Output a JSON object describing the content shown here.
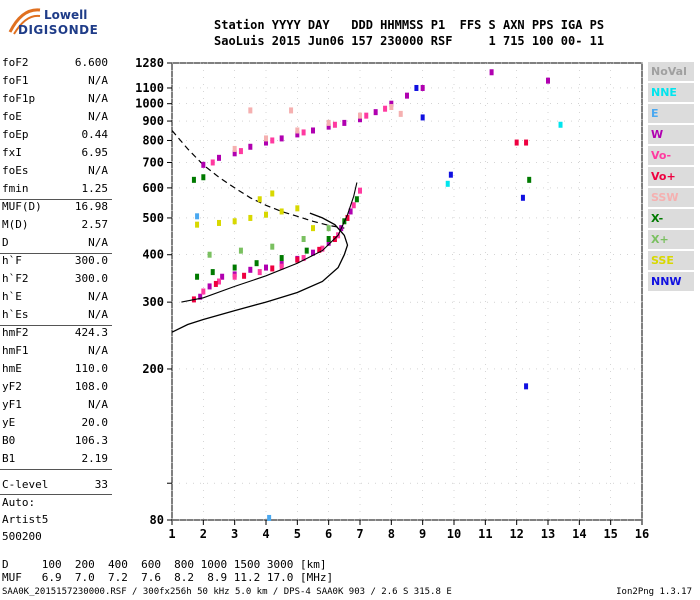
{
  "logo": {
    "line1": "Lowell",
    "line2": "DIGISONDE"
  },
  "header": {
    "line1": "Station YYYY DAY   DDD HHMMSS P1  FFS S AXN PPS IGA PS",
    "line2": "SaoLuis 2015 Jun06 157 230000 RSF     1 715 100 00- 11"
  },
  "params_group1": [
    {
      "k": "foF2",
      "v": "6.600"
    },
    {
      "k": "foF1",
      "v": "N/A"
    },
    {
      "k": "foF1p",
      "v": "N/A"
    },
    {
      "k": "foE",
      "v": "N/A"
    },
    {
      "k": "foEp",
      "v": "0.44"
    },
    {
      "k": "fxI",
      "v": "6.95"
    },
    {
      "k": "foEs",
      "v": "N/A"
    },
    {
      "k": "fmin",
      "v": "1.25"
    }
  ],
  "params_group2": [
    {
      "k": "MUF(D)",
      "v": "16.98"
    },
    {
      "k": "M(D)",
      "v": "2.57"
    },
    {
      "k": "D",
      "v": "N/A"
    }
  ],
  "params_group3": [
    {
      "k": "h`F",
      "v": "300.0"
    },
    {
      "k": "h`F2",
      "v": "300.0"
    },
    {
      "k": "h`E",
      "v": "N/A"
    },
    {
      "k": "h`Es",
      "v": "N/A"
    }
  ],
  "params_group4": [
    {
      "k": "hmF2",
      "v": "424.3"
    },
    {
      "k": "hmF1",
      "v": "N/A"
    },
    {
      "k": "hmE",
      "v": "110.0"
    },
    {
      "k": "yF2",
      "v": "108.0"
    },
    {
      "k": "yF1",
      "v": "N/A"
    },
    {
      "k": "yE",
      "v": "20.0"
    },
    {
      "k": "B0",
      "v": "106.3"
    },
    {
      "k": "B1",
      "v": "2.19"
    }
  ],
  "clevel": {
    "k": "C-level",
    "v": "33"
  },
  "auto": {
    "line1": "Auto:",
    "line2": "Artist5",
    "line3": "500200"
  },
  "legend": [
    {
      "label": "NoVal",
      "color": "#a0a0a0"
    },
    {
      "label": "NNE",
      "color": "#00e5ee"
    },
    {
      "label": "E",
      "color": "#4aa8f0"
    },
    {
      "label": "W",
      "color": "#b000b0"
    },
    {
      "label": "Vo-",
      "color": "#ff3aa0"
    },
    {
      "label": "Vo+",
      "color": "#ee0040"
    },
    {
      "label": "SSW",
      "color": "#f5b0b0"
    },
    {
      "label": "X-",
      "color": "#007a00"
    },
    {
      "label": "X+",
      "color": "#7ac060"
    },
    {
      "label": "SSE",
      "color": "#d8d800"
    },
    {
      "label": "NNW",
      "color": "#1010e0"
    }
  ],
  "bottom": {
    "line1": "D     100  200  400  600  800 1000 1500 3000 [km]",
    "line2": "MUF   6.9  7.0  7.2  7.6  8.2  8.9 11.2 17.0 [MHz]"
  },
  "footer": {
    "left": "SAA0K_2015157230000.RSF / 300fx256h 50 kHz 5.0 km / DPS-4 SAA0K 903 / 2.6 S 315.8 E",
    "right": "Ion2Png 1.3.17"
  },
  "chart_data": {
    "type": "scatter",
    "title": "",
    "xlabel": "",
    "ylabel": "",
    "xlim": [
      1,
      16
    ],
    "ylim": [
      80,
      1280
    ],
    "y_scale": "log",
    "x_ticks": [
      1,
      2,
      3,
      4,
      5,
      6,
      7,
      8,
      9,
      10,
      11,
      12,
      13,
      14,
      15,
      16
    ],
    "y_ticks": [
      80,
      100,
      200,
      300,
      400,
      500,
      600,
      700,
      800,
      900,
      1000,
      1100,
      1280
    ],
    "y_tick_labels": [
      "80",
      "",
      "200",
      "300",
      "400",
      "500",
      "600",
      "700",
      "800",
      "900",
      "1000",
      "1100",
      "1280"
    ],
    "series": [
      {
        "name": "W",
        "color": "#b000b0",
        "points": [
          [
            1.9,
            310
          ],
          [
            2.2,
            330
          ],
          [
            2.6,
            350
          ],
          [
            3.0,
            355
          ],
          [
            3.5,
            365
          ],
          [
            4.0,
            370
          ],
          [
            4.5,
            378
          ],
          [
            5.0,
            390
          ],
          [
            5.5,
            405
          ],
          [
            6.0,
            430
          ],
          [
            6.4,
            470
          ],
          [
            6.7,
            520
          ],
          [
            2.0,
            690
          ],
          [
            2.5,
            720
          ],
          [
            3.0,
            740
          ],
          [
            3.5,
            770
          ],
          [
            4.0,
            790
          ],
          [
            4.5,
            810
          ],
          [
            5.0,
            830
          ],
          [
            5.5,
            850
          ],
          [
            6.0,
            870
          ],
          [
            6.5,
            890
          ],
          [
            7.0,
            910
          ],
          [
            7.5,
            950
          ],
          [
            8.0,
            1000
          ],
          [
            8.5,
            1050
          ],
          [
            9.0,
            1100
          ],
          [
            13.0,
            1150
          ],
          [
            11.2,
            1210
          ]
        ]
      },
      {
        "name": "Vo-",
        "color": "#ff3aa0",
        "points": [
          [
            2.0,
            320
          ],
          [
            2.5,
            340
          ],
          [
            3.0,
            350
          ],
          [
            3.8,
            360
          ],
          [
            4.5,
            372
          ],
          [
            5.2,
            392
          ],
          [
            5.8,
            415
          ],
          [
            6.3,
            450
          ],
          [
            6.8,
            540
          ],
          [
            7.0,
            590
          ],
          [
            2.3,
            700
          ],
          [
            3.2,
            750
          ],
          [
            4.2,
            800
          ],
          [
            5.2,
            840
          ],
          [
            6.2,
            880
          ],
          [
            7.2,
            930
          ],
          [
            7.8,
            970
          ]
        ]
      },
      {
        "name": "Vo+",
        "color": "#ee0040",
        "points": [
          [
            1.7,
            305
          ],
          [
            2.4,
            335
          ],
          [
            3.3,
            352
          ],
          [
            4.2,
            368
          ],
          [
            5.0,
            388
          ],
          [
            5.7,
            412
          ],
          [
            6.2,
            440
          ],
          [
            6.6,
            500
          ],
          [
            12.0,
            790
          ],
          [
            12.3,
            790
          ]
        ]
      },
      {
        "name": "SSW",
        "color": "#f5b0b0",
        "points": [
          [
            3.0,
            760
          ],
          [
            4.0,
            810
          ],
          [
            5.0,
            850
          ],
          [
            6.0,
            890
          ],
          [
            7.0,
            930
          ],
          [
            8.0,
            980
          ],
          [
            8.3,
            940
          ],
          [
            3.5,
            960
          ],
          [
            4.8,
            960
          ]
        ]
      },
      {
        "name": "X-",
        "color": "#007a00",
        "points": [
          [
            1.8,
            350
          ],
          [
            2.3,
            360
          ],
          [
            3.0,
            370
          ],
          [
            3.7,
            380
          ],
          [
            4.5,
            392
          ],
          [
            5.3,
            410
          ],
          [
            6.0,
            440
          ],
          [
            6.5,
            490
          ],
          [
            6.9,
            560
          ],
          [
            1.7,
            630
          ],
          [
            2.0,
            640
          ],
          [
            12.4,
            630
          ]
        ]
      },
      {
        "name": "X+",
        "color": "#7ac060",
        "points": [
          [
            2.2,
            400
          ],
          [
            3.2,
            410
          ],
          [
            4.2,
            420
          ],
          [
            5.2,
            440
          ],
          [
            6.0,
            470
          ]
        ]
      },
      {
        "name": "SSE",
        "color": "#d8d800",
        "points": [
          [
            1.8,
            480
          ],
          [
            2.5,
            485
          ],
          [
            3.0,
            490
          ],
          [
            3.5,
            500
          ],
          [
            4.0,
            510
          ],
          [
            4.5,
            520
          ],
          [
            5.0,
            530
          ],
          [
            3.8,
            560
          ],
          [
            4.2,
            580
          ],
          [
            5.5,
            470
          ]
        ]
      },
      {
        "name": "NNW",
        "color": "#1010e0",
        "points": [
          [
            9.9,
            650
          ],
          [
            12.2,
            565
          ],
          [
            12.3,
            180
          ],
          [
            9.0,
            920
          ],
          [
            8.8,
            1100
          ]
        ]
      },
      {
        "name": "NNE",
        "color": "#00e5ee",
        "points": [
          [
            13.4,
            880
          ],
          [
            9.8,
            615
          ]
        ]
      },
      {
        "name": "E",
        "color": "#4aa8f0",
        "points": [
          [
            4.1,
            81
          ],
          [
            1.8,
            505
          ]
        ]
      }
    ],
    "profile_curve": [
      [
        1.0,
        250
      ],
      [
        1.5,
        262
      ],
      [
        2.0,
        270
      ],
      [
        3.0,
        285
      ],
      [
        4.0,
        300
      ],
      [
        5.0,
        318
      ],
      [
        5.8,
        340
      ],
      [
        6.3,
        370
      ],
      [
        6.5,
        400
      ],
      [
        6.6,
        424
      ],
      [
        6.5,
        450
      ],
      [
        6.2,
        480
      ],
      [
        5.8,
        500
      ],
      [
        5.4,
        515
      ]
    ],
    "dashed_curve": [
      [
        1.0,
        850
      ],
      [
        1.5,
        760
      ],
      [
        2.0,
        690
      ],
      [
        2.5,
        640
      ],
      [
        3.0,
        600
      ],
      [
        3.5,
        565
      ],
      [
        4.0,
        540
      ],
      [
        4.5,
        520
      ],
      [
        5.0,
        505
      ],
      [
        5.5,
        490
      ],
      [
        6.0,
        478
      ],
      [
        6.5,
        470
      ]
    ],
    "trace_curve": [
      [
        1.3,
        300
      ],
      [
        2.0,
        308
      ],
      [
        3.0,
        330
      ],
      [
        4.0,
        352
      ],
      [
        5.0,
        380
      ],
      [
        5.8,
        410
      ],
      [
        6.3,
        450
      ],
      [
        6.6,
        510
      ],
      [
        6.8,
        570
      ],
      [
        6.9,
        620
      ]
    ]
  }
}
